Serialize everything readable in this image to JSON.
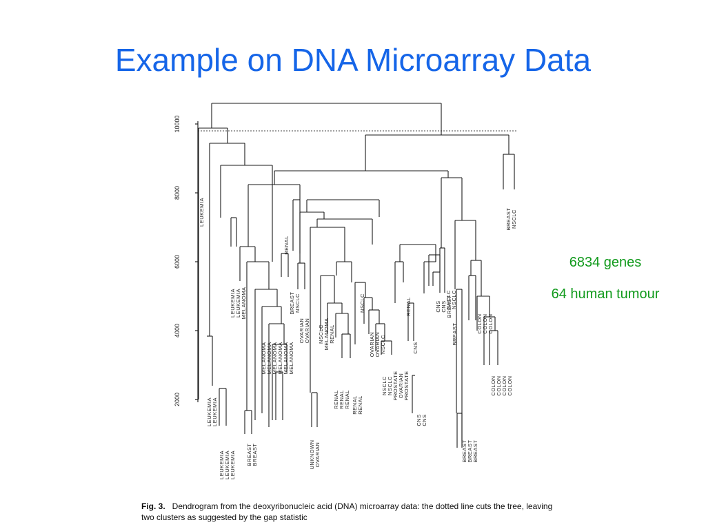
{
  "slide": {
    "title": "Example on DNA Microarray Data"
  },
  "notes": {
    "genes": "6834 genes",
    "tumour": "64 human tumour"
  },
  "caption": {
    "fig_no": "Fig. 3.",
    "text": "Dendrogram from the deoxyribonucleic acid (DNA) microarray data: the dotted line cuts the tree, leaving two clusters as suggested by the gap statistic"
  },
  "dendrogram": {
    "axis_ticks": [
      "2000",
      "4000",
      "6000",
      "8000",
      "10000"
    ],
    "cut_height": 9800,
    "leaf_labels": [
      "LEUKEMIA",
      "LEUKEMIA\nLEUKEMIA",
      "LEUKEMIA\nLEUKEMIA\nLEUKEMIA",
      "LEUKEMIA\nLEUKEMIA\nMELANOMA",
      "BREAST\nBREAST",
      "MELANOMA\nMELANOMA\nMELANOMA\nMELANOMA\nMELANOMA\nMELANOMA",
      "RENAL",
      "BREAST\nNSCLC",
      "OVARIAN\nOVARIAN",
      "UNKNOWN\nOVARIAN",
      "NSCLC\nMELANOMA\nRENAL",
      "RENAL\nRENAL\nRENAL",
      "RENAL\nRENAL",
      "NSCLC",
      "OVARIAN\nOVARIAN\nNSCLC",
      "NSCLC\nNSCLC\nPROSTATE\nOVARIAN\nPROSTATE",
      "RENAL",
      "CNS",
      "CNS\nCNS",
      "CNS\nCNS\nBREAST",
      "NSCLC\nNSCLC",
      "BREAST",
      "BREAST\nBREAST\nBREAST",
      "COLON\nCOLON\nCOLON",
      "COLON\nCOLON\nCOLON\nCOLON",
      "BREAST\nNSCLC"
    ]
  }
}
